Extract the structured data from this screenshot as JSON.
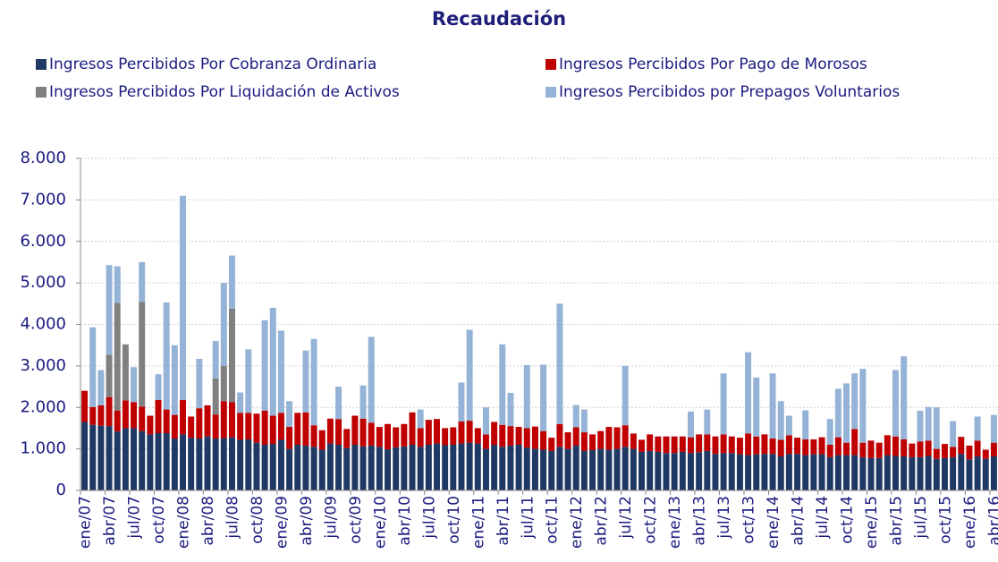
{
  "chart_data": {
    "type": "stacked-bar",
    "title": "Recaudación",
    "categories": [
      "ene/07",
      null,
      null,
      "abr/07",
      null,
      null,
      "jul/07",
      null,
      null,
      "oct/07",
      null,
      null,
      "ene/08",
      null,
      null,
      "abr/08",
      null,
      null,
      "jul/08",
      null,
      null,
      "oct/08",
      null,
      null,
      "ene/09",
      null,
      null,
      "abr/09",
      null,
      null,
      "jul/09",
      null,
      null,
      "oct/09",
      null,
      null,
      "ene/10",
      null,
      null,
      "abr/10",
      null,
      null,
      "jul/10",
      null,
      null,
      "oct/10",
      null,
      null,
      "ene/11",
      null,
      null,
      "abr/11",
      null,
      null,
      "jul/11",
      null,
      null,
      "oct/11",
      null,
      null,
      "ene/12",
      null,
      null,
      "abr/12",
      null,
      null,
      "jul/12",
      null,
      null,
      "oct/12",
      null,
      null,
      "ene/13",
      null,
      null,
      "abr/13",
      null,
      null,
      "jul/13",
      null,
      null,
      "oct/13",
      null,
      null,
      "ene/14",
      null,
      null,
      "abr/14",
      null,
      null,
      "jul/14",
      null,
      null,
      "oct/14",
      null,
      null,
      "ene/15",
      null,
      null,
      "abr/15",
      null,
      null,
      "jul/15",
      null,
      null,
      "oct/15",
      null,
      null,
      "ene/16",
      null,
      null,
      "abr/16"
    ],
    "series": [
      {
        "name": "Ingresos Percibidos Por Cobranza Ordinaria",
        "color": "#1f3864",
        "values": [
          1650,
          1580,
          1560,
          1550,
          1420,
          1500,
          1500,
          1430,
          1350,
          1380,
          1380,
          1250,
          1350,
          1270,
          1250,
          1300,
          1250,
          1260,
          1280,
          1220,
          1230,
          1150,
          1100,
          1120,
          1220,
          1000,
          1100,
          1080,
          1050,
          980,
          1130,
          1100,
          1020,
          1100,
          1060,
          1080,
          1050,
          990,
          1040,
          1060,
          1100,
          1050,
          1100,
          1130,
          1090,
          1100,
          1130,
          1150,
          1130,
          1000,
          1100,
          1050,
          1080,
          1100,
          1030,
          1000,
          980,
          950,
          1050,
          1000,
          1080,
          950,
          970,
          1000,
          980,
          1000,
          1050,
          1000,
          930,
          950,
          930,
          900,
          900,
          930,
          900,
          920,
          950,
          880,
          900,
          900,
          870,
          850,
          870,
          880,
          880,
          820,
          880,
          880,
          850,
          870,
          870,
          800,
          850,
          850,
          850,
          800,
          780,
          780,
          850,
          830,
          820,
          800,
          800,
          830,
          760,
          780,
          800,
          880,
          750,
          820,
          760,
          820
        ]
      },
      {
        "name": "Ingresos Percibidos Por Pago de Morosos",
        "color": "#c00000",
        "values": [
          750,
          430,
          490,
          700,
          500,
          670,
          630,
          590,
          450,
          800,
          570,
          570,
          830,
          510,
          730,
          750,
          580,
          890,
          850,
          650,
          640,
          700,
          820,
          680,
          650,
          530,
          770,
          800,
          520,
          470,
          600,
          620,
          460,
          700,
          670,
          550,
          480,
          610,
          480,
          540,
          780,
          450,
          600,
          590,
          410,
          420,
          530,
          530,
          370,
          350,
          550,
          530,
          470,
          430,
          470,
          540,
          450,
          320,
          550,
          400,
          440,
          450,
          380,
          430,
          550,
          520,
          520,
          370,
          290,
          400,
          370,
          400,
          400,
          370,
          380,
          430,
          400,
          420,
          450,
          400,
          400,
          520,
          430,
          470,
          370,
          400,
          450,
          390,
          380,
          360,
          410,
          300,
          430,
          300,
          630,
          350,
          420,
          370,
          480,
          470,
          410,
          330,
          380,
          370,
          240,
          340,
          250,
          410,
          330,
          380,
          220,
          330
        ]
      },
      {
        "name": "Ingresos Percibidos Por Liquidación de Activos",
        "color": "#808080",
        "values": [
          0,
          0,
          0,
          1020,
          2600,
          1350,
          0,
          2520,
          0,
          0,
          0,
          0,
          0,
          0,
          0,
          0,
          870,
          850,
          2250,
          0,
          0,
          0,
          0,
          0,
          0,
          0,
          0,
          0,
          0,
          0,
          0,
          0,
          0,
          0,
          0,
          0,
          0,
          0,
          0,
          0,
          0,
          0,
          0,
          0,
          0,
          0,
          0,
          0,
          0,
          0,
          0,
          0,
          0,
          0,
          0,
          0,
          0,
          0,
          0,
          0,
          0,
          0,
          0,
          0,
          0,
          0,
          0,
          0,
          0,
          0,
          0,
          0,
          0,
          0,
          0,
          0,
          0,
          0,
          0,
          0,
          0,
          0,
          0,
          0,
          0,
          0,
          0,
          0,
          0,
          0,
          0,
          0,
          0,
          0,
          0,
          0,
          0,
          0,
          0,
          0,
          0,
          0,
          0,
          0,
          0,
          0,
          0,
          0,
          0,
          0,
          0,
          0
        ]
      },
      {
        "name": "Ingresos Percibidos por Prepagos Voluntarios",
        "color": "#95b3d7",
        "values": [
          0,
          1920,
          850,
          2160,
          880,
          0,
          840,
          960,
          0,
          620,
          2580,
          1680,
          4920,
          0,
          1190,
          0,
          900,
          2000,
          1280,
          490,
          1530,
          0,
          2180,
          2600,
          1980,
          620,
          0,
          1490,
          2080,
          0,
          0,
          780,
          0,
          0,
          800,
          2070,
          0,
          0,
          0,
          0,
          0,
          450,
          0,
          0,
          0,
          0,
          940,
          2190,
          0,
          650,
          0,
          1940,
          800,
          0,
          1520,
          0,
          1600,
          0,
          2900,
          0,
          540,
          550,
          0,
          0,
          0,
          0,
          1430,
          0,
          0,
          0,
          0,
          0,
          0,
          0,
          620,
          0,
          600,
          0,
          1470,
          0,
          0,
          1960,
          1420,
          0,
          1570,
          930,
          470,
          0,
          700,
          0,
          0,
          620,
          1170,
          1430,
          1340,
          1780,
          0,
          0,
          0,
          1600,
          2000,
          0,
          740,
          810,
          1000,
          0,
          620,
          0,
          0,
          580,
          0,
          670
        ]
      }
    ],
    "ylim": [
      0,
      8000
    ],
    "yticks": [
      0,
      {
        "value": 1000,
        "label": "1.000"
      },
      {
        "value": 2000,
        "label": "2.000"
      },
      {
        "value": 3000,
        "label": "3.000"
      },
      {
        "value": 4000,
        "label": "4.000"
      },
      {
        "value": 5000,
        "label": "5.000"
      },
      {
        "value": 6000,
        "label": "6.000"
      },
      {
        "value": 7000,
        "label": "7.000"
      },
      {
        "value": 8000,
        "label": "8.000"
      }
    ],
    "grid": true
  }
}
